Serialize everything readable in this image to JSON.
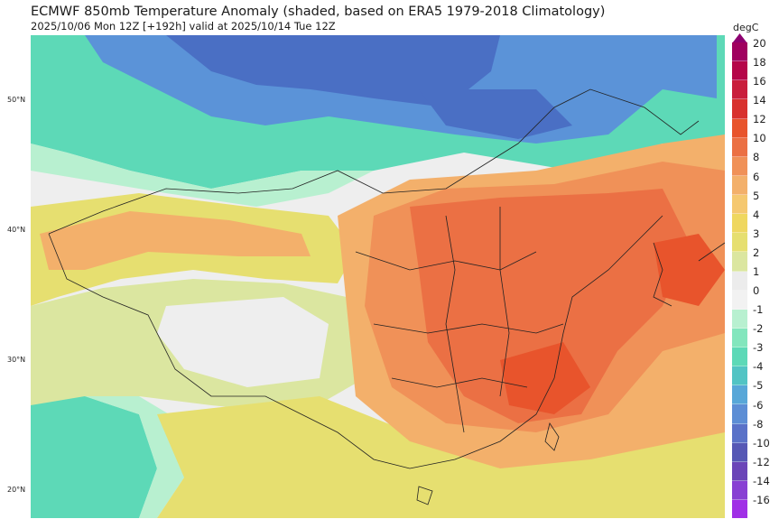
{
  "title": "ECMWF 850mb Temperature Anomaly (shaded, based on ERA5 1979-2018 Climatology)",
  "subtitle": "2025/10/06 Mon 12Z [+192h] valid at 2025/10/14 Tue 12Z",
  "latitude_labels": [
    "50°N",
    "40°N",
    "30°N",
    "20°N"
  ],
  "colorbar": {
    "unit": "degC",
    "ticks": [
      "20",
      "18",
      "16",
      "14",
      "12",
      "10",
      "8",
      "6",
      "5",
      "4",
      "3",
      "2",
      "1",
      "0",
      "-1",
      "-2",
      "-3",
      "-4",
      "-5",
      "-6",
      "-8",
      "-10",
      "-12",
      "-14",
      "-16"
    ],
    "colors": [
      "#a0005f",
      "#b5064a",
      "#c91e3c",
      "#d8312e",
      "#e8542c",
      "#eb7044",
      "#f09158",
      "#f3b06b",
      "#f5c870",
      "#efd760",
      "#e6df70",
      "#dbe6a0",
      "#ececec",
      "#f2f2f2",
      "#b8f0d0",
      "#83e6bd",
      "#5dd9b7",
      "#52c4c4",
      "#58a7d8",
      "#5d8ed5",
      "#5a72c8",
      "#5658b5",
      "#6b45b8",
      "#8840d3",
      "#a030e6"
    ]
  },
  "map": {
    "fields": {
      "cool_north": "#4a6fc4",
      "cool_mid": "#5b93d8",
      "teal_band": "#5dd9b7",
      "mint_band": "#b8f0d0",
      "neutral": "#eeeeee",
      "light_yellow_green": "#dbe6a0",
      "yellow": "#e6df70",
      "orange_light": "#f3b06b",
      "orange": "#f09158",
      "red_orange": "#eb7044",
      "red": "#e8542c"
    }
  }
}
